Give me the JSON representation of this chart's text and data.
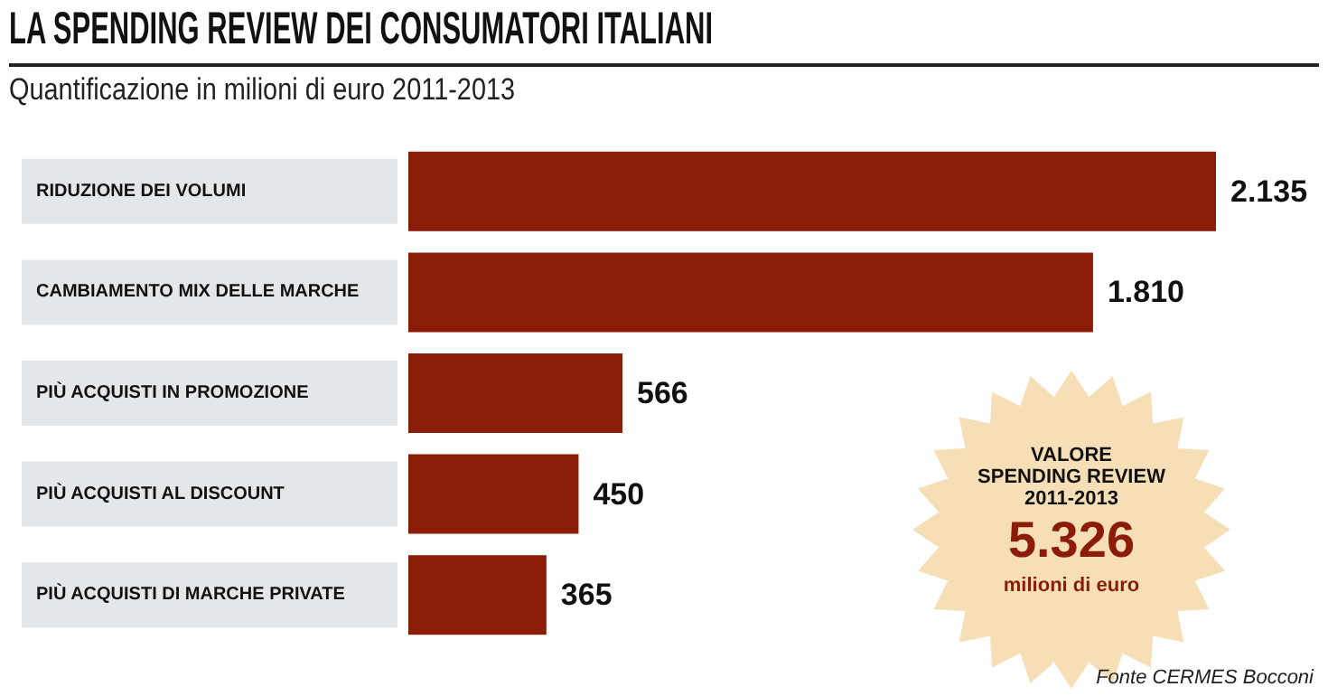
{
  "chart_data": {
    "type": "bar",
    "orientation": "horizontal",
    "title": "LA SPENDING REVIEW DEI CONSUMATORI ITALIANI",
    "subtitle": "Quantificazione in milioni di euro 2011-2013",
    "categories": [
      "RIDUZIONE DEI VOLUMI",
      "CAMBIAMENTO MIX DELLE MARCHE",
      "PIÙ ACQUISTI IN PROMOZIONE",
      "PIÙ ACQUISTI AL DISCOUNT",
      "PIÙ ACQUISTI DI MARCHE PRIVATE"
    ],
    "values": [
      2135,
      1810,
      566,
      450,
      365
    ],
    "value_labels": [
      "2.135",
      "1.810",
      "566",
      "450",
      "365"
    ],
    "color": "#8b1c08",
    "annotations": [
      "VALORE\nSPENDING REVIEW\n2011-2013",
      "5.326",
      "milioni di euro",
      "Fonte CERMES Bocconi"
    ]
  }
}
